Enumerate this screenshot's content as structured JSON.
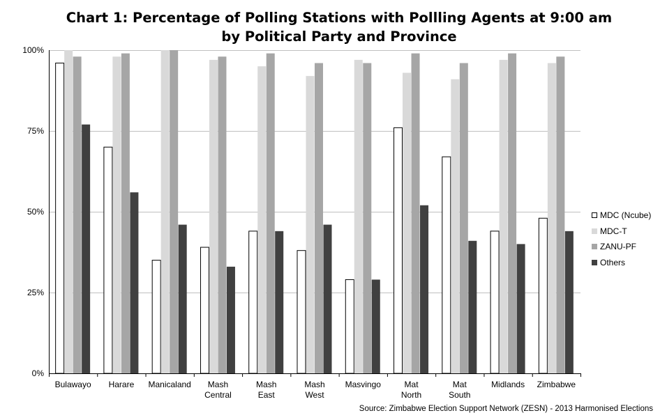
{
  "title_line1": "Chart 1: Percentage of Polling Stations with Pollling Agents  at 9:00 am",
  "title_line2": "by Political Party and Province",
  "source_note": "Source: Zimbabwe Election Support Network (ZESN) - 2013 Harmonised Elections",
  "chart_data": {
    "type": "bar",
    "title": "Chart 1: Percentage of Polling Stations with Pollling Agents  at 9:00 am by Political Party and Province",
    "xlabel": "",
    "ylabel": "",
    "ylim": [
      0,
      100
    ],
    "yticks": [
      0,
      25,
      50,
      75,
      100
    ],
    "ytick_labels": [
      "0%",
      "25%",
      "50%",
      "75%",
      "100%"
    ],
    "grid": true,
    "legend_position": "right",
    "categories": [
      [
        "Bulawayo"
      ],
      [
        "Harare"
      ],
      [
        "Manicaland"
      ],
      [
        "Mash",
        "Central"
      ],
      [
        "Mash",
        "East"
      ],
      [
        "Mash",
        "West"
      ],
      [
        "Masvingo"
      ],
      [
        "Mat",
        "North"
      ],
      [
        "Mat",
        "South"
      ],
      [
        "Midlands"
      ],
      [
        "Zimbabwe"
      ]
    ],
    "series": [
      {
        "name": "MDC (Ncube)",
        "color": "#ffffff",
        "stroke": "#000000",
        "values": [
          96,
          70,
          35,
          39,
          44,
          38,
          29,
          76,
          67,
          44,
          48
        ]
      },
      {
        "name": "MDC-T",
        "color": "#d9d9d9",
        "stroke": "none",
        "values": [
          100,
          98,
          100,
          97,
          95,
          92,
          97,
          93,
          91,
          97,
          96
        ]
      },
      {
        "name": "ZANU-PF",
        "color": "#a6a6a6",
        "stroke": "none",
        "values": [
          98,
          99,
          100,
          98,
          99,
          96,
          96,
          99,
          96,
          99,
          98
        ]
      },
      {
        "name": "Others",
        "color": "#404040",
        "stroke": "none",
        "values": [
          77,
          56,
          46,
          33,
          44,
          46,
          29,
          52,
          41,
          40,
          44
        ]
      }
    ]
  }
}
